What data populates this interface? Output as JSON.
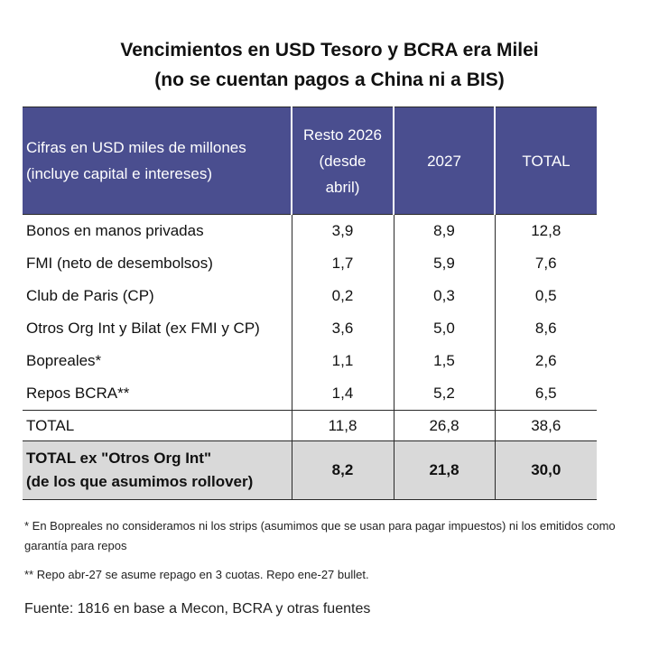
{
  "title": {
    "line1": "Vencimientos en USD Tesoro y BCRA era Milei",
    "line2": "(no se cuentan pagos a China ni a BIS)"
  },
  "colors": {
    "header_bg": "#4a4e8f",
    "highlight_row_bg": "#d9d9d9"
  },
  "table": {
    "header": {
      "label_line1": "Cifras en USD miles de millones",
      "label_line2": "(incluye capital e intereses)",
      "col1_line1": "Resto 2026",
      "col1_line2": "(desde",
      "col1_line3": "abril)",
      "col2": "2027",
      "col3": "TOTAL"
    },
    "rows": [
      {
        "label": "Bonos en manos privadas",
        "v2026": "3,9",
        "v2027": "8,9",
        "total": "12,8"
      },
      {
        "label": "FMI (neto de desembolsos)",
        "v2026": "1,7",
        "v2027": "5,9",
        "total": "7,6"
      },
      {
        "label": "Club de Paris (CP)",
        "v2026": "0,2",
        "v2027": "0,3",
        "total": "0,5"
      },
      {
        "label": "Otros Org Int y Bilat (ex FMI y CP)",
        "v2026": "3,6",
        "v2027": "5,0",
        "total": "8,6"
      },
      {
        "label": "Bopreales*",
        "v2026": "1,1",
        "v2027": "1,5",
        "total": "2,6"
      },
      {
        "label": "Repos BCRA**",
        "v2026": "1,4",
        "v2027": "5,2",
        "total": "6,5"
      }
    ],
    "total_row": {
      "label": "TOTAL",
      "v2026": "11,8",
      "v2027": "26,8",
      "total": "38,6"
    },
    "ex_row": {
      "label_line1": "TOTAL ex \"Otros Org Int\"",
      "label_line2": "(de los que asumimos rollover)",
      "v2026": "8,2",
      "v2027": "21,8",
      "total": "30,0"
    }
  },
  "notes": {
    "note1": "* En Bopreales no consideramos ni los strips (asumimos que se usan para pagar impuestos) ni los emitidos como garantía para repos",
    "note2": "** Repo abr-27 se asume repago en 3 cuotas. Repo ene-27 bullet."
  },
  "source": "Fuente: 1816 en base a Mecon, BCRA y otras fuentes"
}
